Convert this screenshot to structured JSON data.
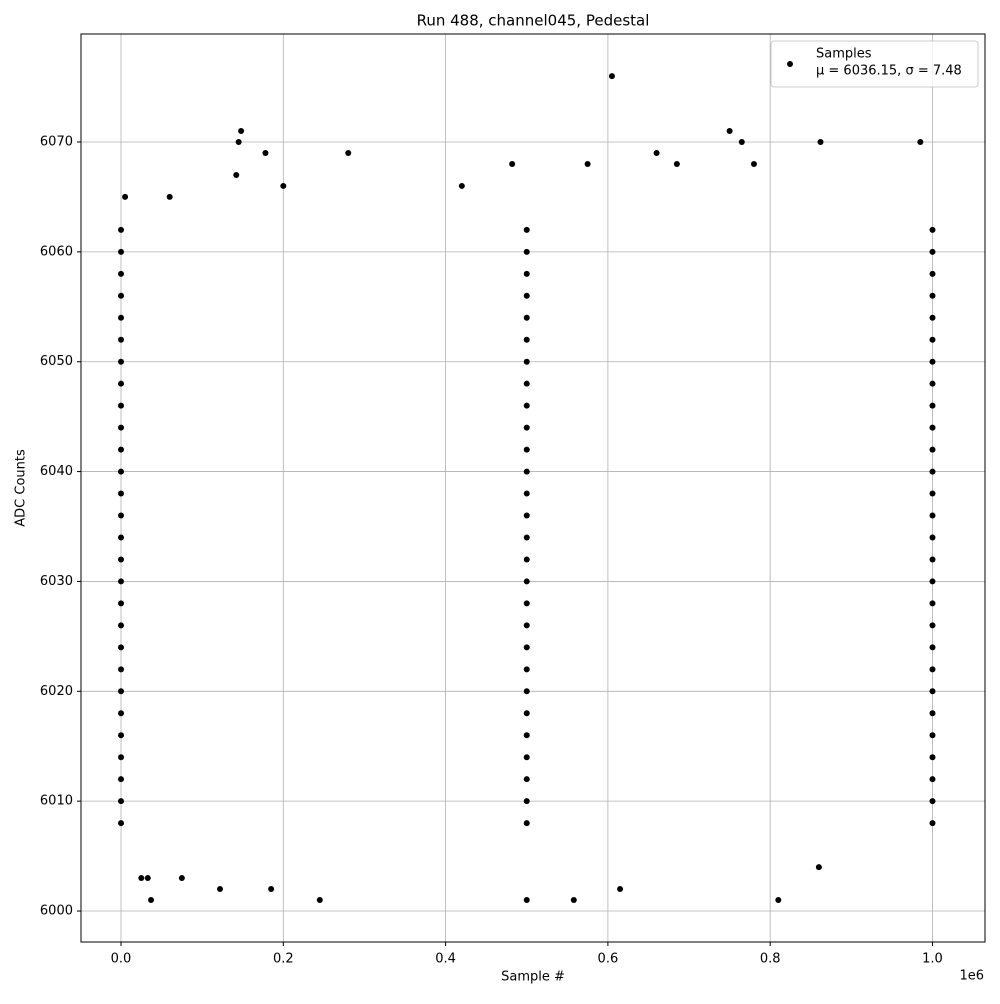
{
  "chart_data": {
    "type": "scatter",
    "title": "Run 488, channel045, Pedestal",
    "x_label": "Sample #",
    "y_label": "ADC Counts",
    "x_offset_label": "1e6",
    "xlim": [
      -49300,
      1064700
    ],
    "ylim": [
      5997.18,
      6079.83
    ],
    "xticks": [
      {
        "value": 0,
        "label": "0.0"
      },
      {
        "value": 200000,
        "label": "0.2"
      },
      {
        "value": 400000,
        "label": "0.4"
      },
      {
        "value": 600000,
        "label": "0.6"
      },
      {
        "value": 800000,
        "label": "0.8"
      },
      {
        "value": 1000000,
        "label": "1.0"
      }
    ],
    "yticks": [
      6000,
      6010,
      6020,
      6030,
      6040,
      6050,
      6060,
      6070
    ],
    "grid": true,
    "legend": "upper right",
    "legend_subtitle": "μ = 6036.15, σ = 7.48",
    "series": [
      {
        "name": "Samples",
        "color": "#000000",
        "x": [
          0,
          500000,
          1000000,
          0,
          500000,
          1000000,
          0,
          500000,
          1000000,
          0,
          500000,
          1000000,
          0,
          500000,
          1000000,
          0,
          500000,
          1000000,
          0,
          500000,
          1000000,
          0,
          500000,
          1000000,
          0,
          500000,
          1000000,
          0,
          500000,
          1000000,
          0,
          500000,
          1000000,
          0,
          500000,
          1000000,
          0,
          500000,
          1000000,
          0,
          500000,
          1000000,
          0,
          500000,
          1000000,
          0,
          500000,
          1000000,
          0,
          500000,
          1000000,
          0,
          500000,
          1000000,
          0,
          500000,
          1000000,
          0,
          500000,
          1000000,
          0,
          500000,
          1000000,
          0,
          500000,
          1000000,
          0,
          500000,
          1000000,
          0,
          500000,
          1000000,
          0,
          500000,
          1000000,
          0,
          500000,
          1000000,
          0,
          500000,
          1000000,
          0,
          500000,
          1000000,
          5000,
          37000,
          25000,
          33000,
          75000,
          122000,
          145000,
          148000,
          142000,
          178000,
          185000,
          245000,
          280000,
          500000,
          558000,
          605000,
          615000,
          660000,
          685000,
          750000,
          765000,
          780000,
          810000,
          862000,
          860000,
          985000,
          482000,
          575000,
          60000,
          200000,
          420000
        ],
        "values": [
          6008,
          6008,
          6008,
          6010,
          6010,
          6010,
          6012,
          6012,
          6012,
          6014,
          6014,
          6014,
          6016,
          6016,
          6016,
          6018,
          6018,
          6018,
          6020,
          6020,
          6020,
          6022,
          6022,
          6022,
          6024,
          6024,
          6024,
          6026,
          6026,
          6026,
          6028,
          6028,
          6028,
          6030,
          6030,
          6030,
          6032,
          6032,
          6032,
          6034,
          6034,
          6034,
          6036,
          6036,
          6036,
          6038,
          6038,
          6038,
          6040,
          6040,
          6040,
          6042,
          6042,
          6042,
          6044,
          6044,
          6044,
          6046,
          6046,
          6046,
          6048,
          6048,
          6048,
          6050,
          6050,
          6050,
          6052,
          6052,
          6052,
          6054,
          6054,
          6054,
          6056,
          6056,
          6056,
          6058,
          6058,
          6058,
          6060,
          6060,
          6060,
          6062,
          6062,
          6062,
          6065,
          6001,
          6003,
          6003,
          6003,
          6002,
          6070,
          6071,
          6067,
          6069,
          6002,
          6001,
          6069,
          6001,
          6001,
          6076,
          6002,
          6069,
          6068,
          6071,
          6070,
          6068,
          6001,
          6070,
          6004,
          6070,
          6068,
          6068,
          6065,
          6066,
          6066
        ]
      }
    ]
  }
}
